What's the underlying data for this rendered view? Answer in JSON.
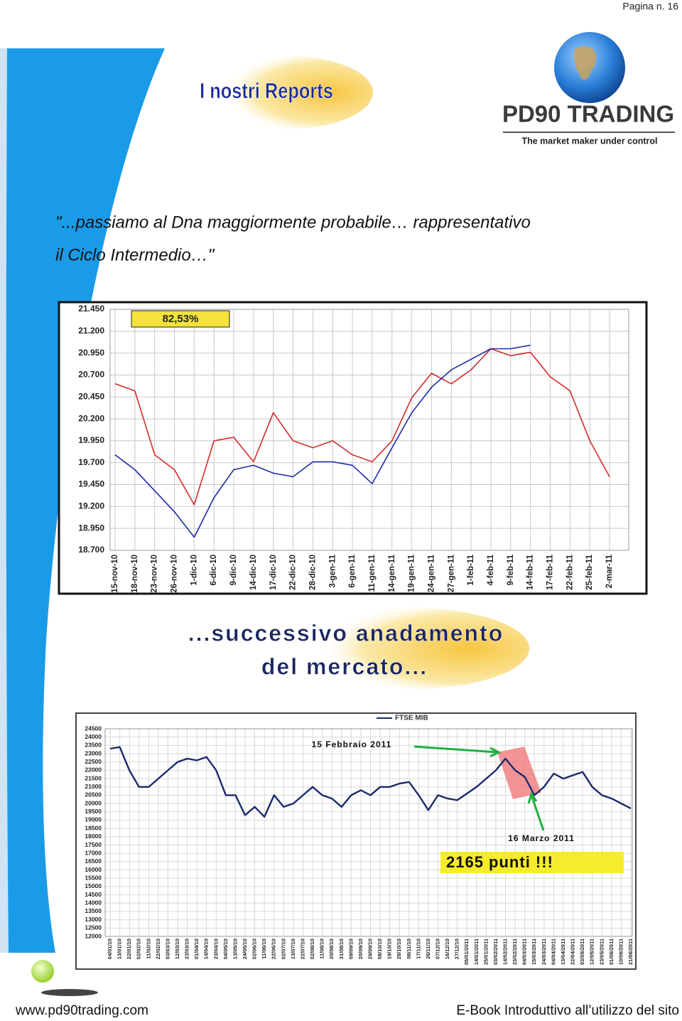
{
  "header": {
    "page": "Pagina n. 16",
    "title": "I nostri Reports",
    "brand": "PD90 TRADING",
    "tagline": "The market maker under control"
  },
  "quote": [
    "\"...passiamo al Dna maggiormente probabile… rappresentativo",
    "il Ciclo Intermedio…\""
  ],
  "chart_data": [
    {
      "type": "line",
      "annotations": [
        "82,53%"
      ],
      "categories": [
        "15-nov-10",
        "18-nov-10",
        "23-nov-10",
        "26-nov-10",
        "1-dic-10",
        "6-dic-10",
        "9-dic-10",
        "14-dic-10",
        "17-dic-10",
        "22-dic-10",
        "28-dic-10",
        "3-gen-11",
        "6-gen-11",
        "11-gen-11",
        "14-gen-11",
        "19-gen-11",
        "24-gen-11",
        "27-gen-11",
        "1-feb-11",
        "4-feb-11",
        "9-feb-11",
        "14-feb-11",
        "17-feb-11",
        "22-feb-11",
        "25-feb-11",
        "2-mar-11"
      ],
      "series": [
        {
          "color": "#d42a2a",
          "values": [
            20600,
            20520,
            19790,
            19620,
            19220,
            19950,
            19990,
            19710,
            20270,
            19950,
            19870,
            19950,
            19790,
            19710,
            19950,
            20440,
            20720,
            20600,
            20760,
            21000,
            20920,
            20960,
            20680,
            20520,
            19950,
            19540
          ]
        },
        {
          "color": "#1c2aa8",
          "values": [
            19790,
            19620,
            19380,
            19140,
            18850,
            19300,
            19620,
            19670,
            19580,
            19540,
            19710,
            19710,
            19670,
            19460,
            19870,
            20270,
            20560,
            20760,
            20880,
            21000,
            21000,
            21040,
            null,
            null,
            null,
            null
          ]
        }
      ],
      "ylim": [
        18700,
        21450
      ],
      "yticks": [
        {
          "value": 18700,
          "label": "18.700"
        },
        {
          "value": 18950,
          "label": "18.950"
        },
        {
          "value": 19200,
          "label": "19.200"
        },
        {
          "value": 19450,
          "label": "19.450"
        },
        {
          "value": 19700,
          "label": "19.700"
        },
        {
          "value": 19950,
          "label": "19.950"
        },
        {
          "value": 20200,
          "label": "20.200"
        },
        {
          "value": 20450,
          "label": "20.450"
        },
        {
          "value": 20700,
          "label": "20.700"
        },
        {
          "value": 20950,
          "label": "20.950"
        },
        {
          "value": 21200,
          "label": "21.200"
        },
        {
          "value": 21450,
          "label": "21.450"
        }
      ],
      "grid": true
    },
    {
      "type": "line",
      "annotations": [
        "15 Febbraio 2011",
        "16 Marzo 2011",
        "2165 punti !!!"
      ],
      "categories": [
        "04/01/10",
        "13/01/10",
        "22/01/10",
        "02/02/10",
        "11/02/10",
        "22/02/10",
        "03/03/10",
        "12/03/10",
        "23/03/10",
        "01/04/10",
        "14/04/10",
        "23/04/10",
        "04/05/10",
        "13/05/10",
        "24/05/10",
        "02/06/10",
        "11/06/10",
        "22/06/10",
        "02/07/10",
        "13/07/10",
        "22/07/10",
        "02/08/10",
        "11/08/10",
        "20/08/10",
        "31/08/10",
        "09/09/10",
        "20/09/10",
        "29/09/10",
        "08/10/10",
        "19/10/10",
        "28/10/10",
        "08/11/10",
        "17/11/10",
        "26/11/10",
        "07/12/10",
        "16/12/10",
        "27/12/10",
        "05/01/2011",
        "14/01/2011",
        "25/01/2011",
        "03/02/2011",
        "14/02/2011",
        "23/02/2011",
        "04/03/2011",
        "15/03/2011",
        "24/03/2011",
        "04/04/2011",
        "13/04/2011",
        "22/04/2011",
        "03/05/2011",
        "12/05/2011",
        "23/05/2011",
        "01/06/2011",
        "10/06/2011",
        "21/06/2011"
      ],
      "series": [
        {
          "name": "FTSE MIB",
          "color": "#1a2a6c",
          "values": [
            23300,
            23400,
            22000,
            21000,
            21000,
            21500,
            22000,
            22500,
            22700,
            22600,
            22800,
            22000,
            20500,
            20500,
            19300,
            19800,
            19200,
            20500,
            19800,
            20000,
            20500,
            21000,
            20500,
            20300,
            19800,
            20500,
            20800,
            20500,
            21000,
            21000,
            21200,
            21300,
            20500,
            19600,
            20500,
            20300,
            20200,
            20600,
            21000,
            21500,
            22000,
            22700,
            22000,
            21600,
            20500,
            21000,
            21800,
            21500,
            21700,
            21900,
            21000,
            20500,
            20300,
            20000,
            19700
          ]
        }
      ],
      "ylim": [
        12000,
        24500
      ],
      "yticks": [
        12000,
        12500,
        13000,
        13500,
        14000,
        14500,
        15000,
        15500,
        16000,
        16500,
        17000,
        17500,
        18000,
        18500,
        19000,
        19500,
        20000,
        20500,
        21000,
        21500,
        22000,
        22500,
        23000,
        23500,
        24000,
        24500
      ],
      "grid": true
    }
  ],
  "subtitle": [
    "...successivo anadamento",
    "del mercato..."
  ],
  "footer": {
    "site": "www.pd90trading.com",
    "ebook": "E-Book Introduttivo all’utilizzo del sito"
  }
}
